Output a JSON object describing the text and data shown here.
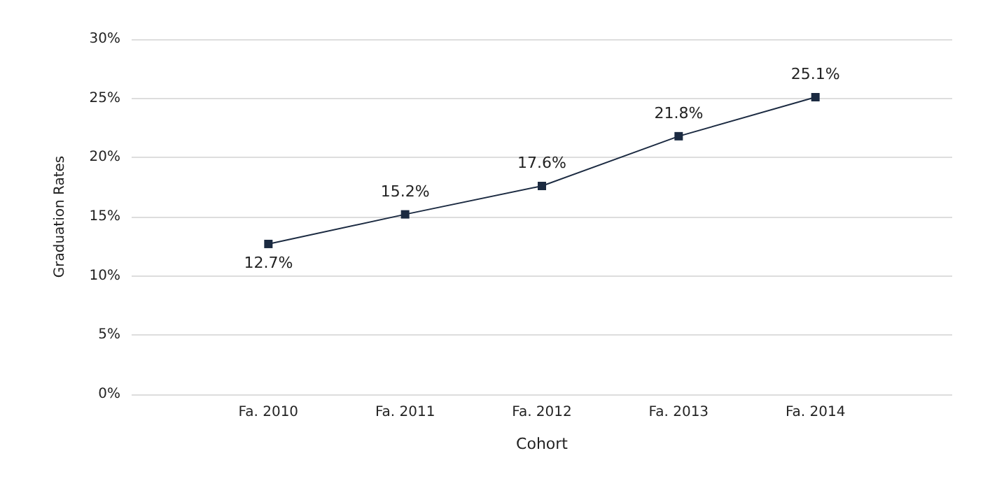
{
  "chart_data": {
    "type": "line",
    "xlabel": "Cohort",
    "ylabel": "Graduation Rates",
    "categories": [
      "Fa. 2010",
      "Fa. 2011",
      "Fa. 2012",
      "Fa. 2013",
      "Fa. 2014"
    ],
    "series": [
      {
        "color": "#1b2a41",
        "values": [
          12.7,
          15.2,
          17.6,
          21.8,
          25.1
        ],
        "value_labels": [
          "12.7%",
          "15.2%",
          "17.6%",
          "21.8%",
          "25.1%"
        ]
      }
    ],
    "ylim": [
      0,
      30
    ],
    "yticks": [
      {
        "value": 0,
        "label": "0%"
      },
      {
        "value": 5,
        "label": "5%"
      },
      {
        "value": 10,
        "label": "10%"
      },
      {
        "value": 15,
        "label": "15%"
      },
      {
        "value": 20,
        "label": "20%"
      },
      {
        "value": 25,
        "label": "25%"
      },
      {
        "value": 30,
        "label": "30%"
      }
    ],
    "grid": "y",
    "marker": "square",
    "line_style": "solid"
  }
}
